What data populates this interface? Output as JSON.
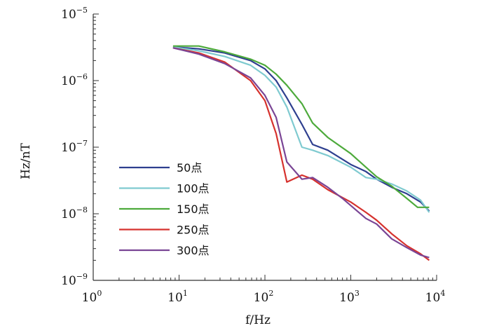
{
  "chart_data": {
    "type": "line",
    "xlabel": "f/Hz",
    "ylabel": "Hz/nT",
    "x_scale": "log",
    "y_scale": "log",
    "xlim": [
      1,
      10000
    ],
    "ylim": [
      1e-09,
      1e-05
    ],
    "x_ticks": [
      1,
      10,
      100,
      1000,
      10000
    ],
    "x_tick_labels": [
      {
        "base": "10",
        "exp": "0"
      },
      {
        "base": "10",
        "exp": "1"
      },
      {
        "base": "10",
        "exp": "2"
      },
      {
        "base": "10",
        "exp": "3"
      },
      {
        "base": "10",
        "exp": "4"
      }
    ],
    "y_ticks": [
      1e-09,
      1e-08,
      1e-07,
      1e-06,
      1e-05
    ],
    "y_tick_labels": [
      {
        "base": "10",
        "exp": "−9"
      },
      {
        "base": "10",
        "exp": "−8"
      },
      {
        "base": "10",
        "exp": "−7"
      },
      {
        "base": "10",
        "exp": "−6"
      },
      {
        "base": "10",
        "exp": "−5"
      }
    ],
    "grid": false,
    "legend_position": "bottom-left",
    "series": [
      {
        "name": "50点",
        "color": "#2e3f8f",
        "points": [
          [
            8.5,
            3.2e-06
          ],
          [
            17,
            3e-06
          ],
          [
            34,
            2.6e-06
          ],
          [
            68,
            2e-06
          ],
          [
            100,
            1.5e-06
          ],
          [
            135,
            1e-06
          ],
          [
            180,
            5.5e-07
          ],
          [
            270,
            2.2e-07
          ],
          [
            360,
            1.1e-07
          ],
          [
            540,
            9e-08
          ],
          [
            1000,
            5.5e-08
          ],
          [
            1500,
            4.3e-08
          ],
          [
            2000,
            3.3e-08
          ],
          [
            3000,
            2.5e-08
          ],
          [
            4500,
            2e-08
          ],
          [
            6500,
            1.5e-08
          ],
          [
            8200,
            1.1e-08
          ]
        ]
      },
      {
        "name": "100点",
        "color": "#7fcad0",
        "points": [
          [
            8.5,
            3.2e-06
          ],
          [
            17,
            2.8e-06
          ],
          [
            34,
            2.3e-06
          ],
          [
            68,
            1.7e-06
          ],
          [
            100,
            1.2e-06
          ],
          [
            135,
            8e-07
          ],
          [
            180,
            4e-07
          ],
          [
            270,
            1e-07
          ],
          [
            360,
            9e-08
          ],
          [
            540,
            7.5e-08
          ],
          [
            1000,
            5e-08
          ],
          [
            1500,
            3.5e-08
          ],
          [
            2000,
            3.3e-08
          ],
          [
            3000,
            2.8e-08
          ],
          [
            4500,
            2.2e-08
          ],
          [
            6500,
            1.6e-08
          ],
          [
            8200,
            1.05e-08
          ]
        ]
      },
      {
        "name": "150点",
        "color": "#4daa3b",
        "points": [
          [
            8.5,
            3.3e-06
          ],
          [
            17,
            3.3e-06
          ],
          [
            34,
            2.7e-06
          ],
          [
            68,
            2.1e-06
          ],
          [
            100,
            1.7e-06
          ],
          [
            135,
            1.25e-06
          ],
          [
            180,
            8.5e-07
          ],
          [
            270,
            4.5e-07
          ],
          [
            360,
            2.3e-07
          ],
          [
            540,
            1.4e-07
          ],
          [
            1000,
            8e-08
          ],
          [
            1500,
            5e-08
          ],
          [
            2000,
            3.6e-08
          ],
          [
            3000,
            2.6e-08
          ],
          [
            4500,
            1.7e-08
          ],
          [
            6000,
            1.25e-08
          ],
          [
            8200,
            1.25e-08
          ]
        ]
      },
      {
        "name": "250点",
        "color": "#d6322e",
        "points": [
          [
            8.5,
            3.1e-06
          ],
          [
            17,
            2.6e-06
          ],
          [
            34,
            1.9e-06
          ],
          [
            68,
            1e-06
          ],
          [
            100,
            5e-07
          ],
          [
            135,
            1.6e-07
          ],
          [
            180,
            3e-08
          ],
          [
            270,
            3.8e-08
          ],
          [
            360,
            3.3e-08
          ],
          [
            540,
            2.3e-08
          ],
          [
            1000,
            1.5e-08
          ],
          [
            1500,
            1.05e-08
          ],
          [
            2000,
            8e-09
          ],
          [
            3000,
            5e-09
          ],
          [
            4500,
            3.3e-09
          ],
          [
            6500,
            2.5e-09
          ],
          [
            8200,
            2e-09
          ]
        ]
      },
      {
        "name": "300点",
        "color": "#7a4595",
        "points": [
          [
            8.5,
            3.1e-06
          ],
          [
            17,
            2.5e-06
          ],
          [
            34,
            1.8e-06
          ],
          [
            68,
            1.1e-06
          ],
          [
            100,
            6e-07
          ],
          [
            135,
            2.8e-07
          ],
          [
            180,
            6e-08
          ],
          [
            270,
            3.3e-08
          ],
          [
            360,
            3.5e-08
          ],
          [
            540,
            2.5e-08
          ],
          [
            800,
            1.7e-08
          ],
          [
            1500,
            8.5e-09
          ],
          [
            2000,
            7e-09
          ],
          [
            3000,
            4.2e-09
          ],
          [
            4500,
            3.1e-09
          ],
          [
            6500,
            2.4e-09
          ],
          [
            8200,
            2.2e-09
          ]
        ]
      }
    ]
  }
}
